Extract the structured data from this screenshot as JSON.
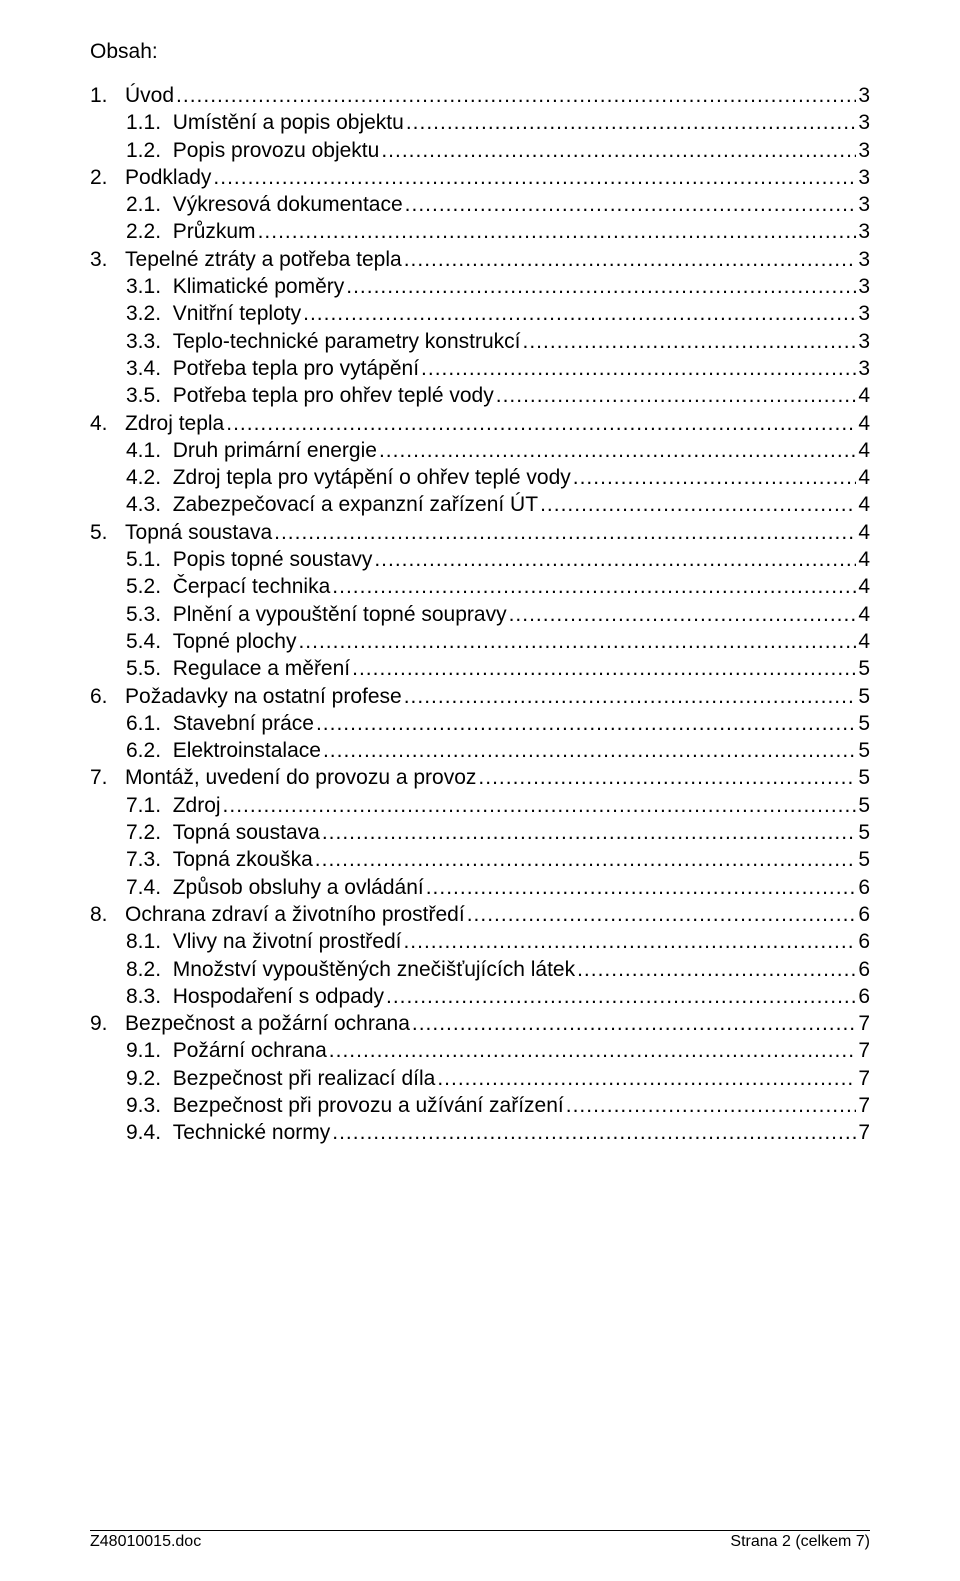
{
  "title": "Obsah:",
  "toc": [
    {
      "indent": 0,
      "num": "1.",
      "text": "Úvod",
      "page": "3"
    },
    {
      "indent": 1,
      "num": "1.1.",
      "text": "Umístění a popis objektu",
      "page": "3"
    },
    {
      "indent": 1,
      "num": "1.2.",
      "text": "Popis provozu objektu",
      "page": "3"
    },
    {
      "indent": 0,
      "num": "2.",
      "text": "Podklady",
      "page": "3"
    },
    {
      "indent": 1,
      "num": "2.1.",
      "text": "Výkresová dokumentace",
      "page": "3"
    },
    {
      "indent": 1,
      "num": "2.2.",
      "text": "Průzkum",
      "page": "3"
    },
    {
      "indent": 0,
      "num": "3.",
      "text": "Tepelné ztráty a potřeba tepla",
      "page": "3"
    },
    {
      "indent": 1,
      "num": "3.1.",
      "text": "Klimatické poměry",
      "page": "3"
    },
    {
      "indent": 1,
      "num": "3.2.",
      "text": "Vnitřní teploty",
      "page": "3"
    },
    {
      "indent": 1,
      "num": "3.3.",
      "text": "Teplo-technické parametry konstrukcí",
      "page": "3"
    },
    {
      "indent": 1,
      "num": "3.4.",
      "text": "Potřeba tepla pro vytápění",
      "page": "3"
    },
    {
      "indent": 1,
      "num": "3.5.",
      "text": "Potřeba tepla pro ohřev teplé vody",
      "page": "4"
    },
    {
      "indent": 0,
      "num": "4.",
      "text": "Zdroj tepla",
      "page": "4"
    },
    {
      "indent": 1,
      "num": "4.1.",
      "text": "Druh primární energie",
      "page": "4"
    },
    {
      "indent": 1,
      "num": "4.2.",
      "text": "Zdroj tepla pro vytápění o ohřev teplé vody",
      "page": "4"
    },
    {
      "indent": 1,
      "num": "4.3.",
      "text": "Zabezpečovací a expanzní zařízení ÚT",
      "page": "4"
    },
    {
      "indent": 0,
      "num": "5.",
      "text": "Topná soustava",
      "page": "4"
    },
    {
      "indent": 1,
      "num": "5.1.",
      "text": "Popis topné soustavy",
      "page": "4"
    },
    {
      "indent": 1,
      "num": "5.2.",
      "text": "Čerpací technika",
      "page": "4"
    },
    {
      "indent": 1,
      "num": "5.3.",
      "text": "Plnění a vypouštění topné soupravy",
      "page": "4"
    },
    {
      "indent": 1,
      "num": "5.4.",
      "text": "Topné plochy",
      "page": "4"
    },
    {
      "indent": 1,
      "num": "5.5.",
      "text": "Regulace a měření",
      "page": "5"
    },
    {
      "indent": 0,
      "num": "6.",
      "text": "Požadavky na ostatní profese",
      "page": "5"
    },
    {
      "indent": 1,
      "num": "6.1.",
      "text": "Stavební práce",
      "page": "5"
    },
    {
      "indent": 1,
      "num": "6.2.",
      "text": "Elektroinstalace",
      "page": "5"
    },
    {
      "indent": 0,
      "num": "7.",
      "text": "Montáž, uvedení do provozu a provoz",
      "page": "5"
    },
    {
      "indent": 1,
      "num": "7.1.",
      "text": "Zdroj",
      "page": "5"
    },
    {
      "indent": 1,
      "num": "7.2.",
      "text": "Topná soustava",
      "page": "5"
    },
    {
      "indent": 1,
      "num": "7.3.",
      "text": "Topná zkouška",
      "page": "5"
    },
    {
      "indent": 1,
      "num": "7.4.",
      "text": "Způsob obsluhy a ovládání",
      "page": "6"
    },
    {
      "indent": 0,
      "num": "8.",
      "text": "Ochrana zdraví a životního prostředí",
      "page": "6"
    },
    {
      "indent": 1,
      "num": "8.1.",
      "text": "Vlivy na životní prostředí",
      "page": "6"
    },
    {
      "indent": 1,
      "num": "8.2.",
      "text": "Množství vypouštěných znečišťujících látek",
      "page": "6"
    },
    {
      "indent": 1,
      "num": "8.3.",
      "text": "Hospodaření s odpady",
      "page": "6"
    },
    {
      "indent": 0,
      "num": "9.",
      "text": "Bezpečnost a požární ochrana",
      "page": "7"
    },
    {
      "indent": 1,
      "num": "9.1.",
      "text": "Požární ochrana",
      "page": "7"
    },
    {
      "indent": 1,
      "num": "9.2.",
      "text": "Bezpečnost při realizací díla",
      "page": "7"
    },
    {
      "indent": 1,
      "num": "9.3.",
      "text": "Bezpečnost při provozu a užívání zařízení",
      "page": "7"
    },
    {
      "indent": 1,
      "num": "9.4.",
      "text": "Technické normy",
      "page": "7"
    }
  ],
  "footer": {
    "left": "Z48010015.doc",
    "right": "Strana 2 (celkem 7)"
  }
}
